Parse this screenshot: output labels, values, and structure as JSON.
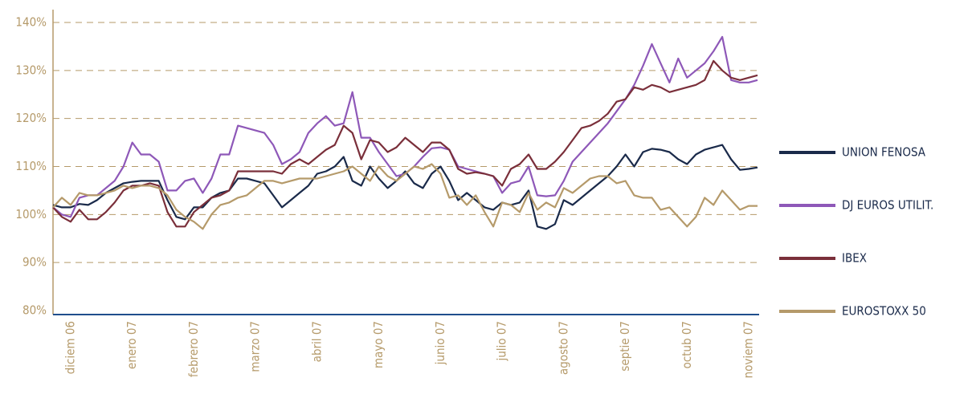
{
  "chart_data": {
    "type": "line",
    "categories": [
      null,
      null,
      "diciem 06",
      null,
      null,
      null,
      null,
      null,
      null,
      "enero 07",
      null,
      null,
      null,
      null,
      null,
      null,
      "febrero 07",
      null,
      null,
      null,
      null,
      null,
      null,
      "marzo 07",
      null,
      null,
      null,
      null,
      null,
      null,
      "abril 07",
      null,
      null,
      null,
      null,
      null,
      null,
      "mayo 07",
      null,
      null,
      null,
      null,
      null,
      null,
      "junio 07",
      null,
      null,
      null,
      null,
      null,
      null,
      "julio 07",
      null,
      null,
      null,
      null,
      null,
      null,
      "agosto 07",
      null,
      null,
      null,
      null,
      null,
      null,
      "septie 07",
      null,
      null,
      null,
      null,
      null,
      null,
      "octub 07",
      null,
      null,
      null,
      null,
      null,
      null,
      "noviem 07",
      null
    ],
    "series": [
      {
        "name": "UNION FENOSA",
        "color": "#1a2a4a",
        "values": [
          102,
          101.5,
          101.5,
          102.2,
          102,
          103,
          104.5,
          105.5,
          106.5,
          106.8,
          107,
          107,
          107,
          103,
          99.5,
          99,
          101.5,
          101.5,
          103.5,
          104.5,
          105,
          107.5,
          107.5,
          107,
          106.5,
          104,
          101.5,
          103,
          104.5,
          106,
          108.5,
          109,
          110,
          112,
          107,
          106,
          110,
          107.5,
          105.5,
          107,
          109,
          106.5,
          105.5,
          108.5,
          110,
          107,
          103,
          104.5,
          103,
          101.5,
          101,
          102.5,
          102,
          102.5,
          105,
          97.5,
          97,
          98,
          103,
          102,
          103.5,
          105,
          106.5,
          108,
          110,
          112.5,
          110,
          113,
          113.7,
          113.5,
          113,
          111.5,
          110.5,
          112.5,
          113.5,
          114,
          114.5,
          111.5,
          109.3,
          109.5,
          109.8
        ]
      },
      {
        "name": "DJ EUROS UTILIT.",
        "color": "#8e58b8",
        "values": [
          101.5,
          100,
          99.5,
          103.5,
          104,
          104,
          105.5,
          107,
          110,
          115,
          112.5,
          112.5,
          111,
          105,
          105,
          107,
          107.5,
          104.5,
          107.5,
          112.5,
          112.5,
          118.5,
          118,
          117.5,
          117,
          114.5,
          110.5,
          111.5,
          113,
          117,
          119,
          120.5,
          118.5,
          119,
          125.5,
          116,
          116,
          113,
          110.5,
          108,
          108.5,
          110,
          112,
          113.8,
          114,
          113.5,
          110,
          109.5,
          109,
          108.5,
          108,
          104.5,
          106.5,
          107,
          110,
          104,
          103.8,
          104,
          107,
          111,
          113,
          115,
          117,
          119,
          121.5,
          124,
          127,
          131,
          135.5,
          131.5,
          127.5,
          132.5,
          128.5,
          130,
          131.5,
          134,
          137,
          128,
          127.5,
          127.5,
          128
        ]
      },
      {
        "name": "IBEX",
        "color": "#7a2f3a",
        "values": [
          101.5,
          99.5,
          98.5,
          101,
          99,
          99,
          100.5,
          102.5,
          105,
          106,
          106,
          106.5,
          106,
          100.5,
          97.5,
          97.5,
          100.5,
          102,
          103.5,
          104,
          105,
          109,
          109,
          109,
          109,
          109,
          108.5,
          110.5,
          111.5,
          110.5,
          112,
          113.5,
          114.5,
          118.5,
          117,
          111.5,
          115.5,
          115,
          113,
          114,
          116,
          114.5,
          113,
          115,
          115,
          113.5,
          109.5,
          108.5,
          108.8,
          108.5,
          108,
          106,
          109.5,
          110.5,
          112.5,
          109.5,
          109.5,
          111,
          113,
          115.5,
          118,
          118.5,
          119.5,
          121,
          123.5,
          124,
          126.5,
          126,
          127,
          126.5,
          125.5,
          126,
          126.5,
          127,
          128,
          132,
          130,
          128.5,
          128,
          128.5,
          129
        ]
      },
      {
        "name": "EUROSTOXX 50",
        "color": "#b59a6a",
        "values": [
          101.5,
          103.5,
          102,
          104.5,
          104,
          104,
          104.5,
          105,
          106,
          105.5,
          106,
          106,
          105.5,
          104,
          101,
          99.5,
          98.5,
          97,
          100,
          102,
          102.5,
          103.5,
          104,
          105.5,
          107,
          107,
          106.5,
          107,
          107.5,
          107.5,
          107.5,
          108,
          108.5,
          109,
          110,
          108.5,
          107,
          110,
          108,
          107,
          108.5,
          110,
          109.5,
          110.5,
          108.5,
          103.5,
          104,
          102,
          104,
          100.5,
          97.5,
          102.5,
          102,
          100.5,
          104.5,
          101,
          102.5,
          101.5,
          105.5,
          104.5,
          106,
          107.5,
          108,
          108,
          106.5,
          107,
          104,
          103.5,
          103.5,
          101,
          101.5,
          99.5,
          97.5,
          99.5,
          103.5,
          102,
          105,
          103,
          101,
          101.8,
          101.8
        ]
      }
    ],
    "ylim": [
      80,
      140
    ],
    "yticks": [
      {
        "value": 80,
        "label": "80%"
      },
      {
        "value": 90,
        "label": "90%"
      },
      {
        "value": 100,
        "label": "100%"
      },
      {
        "value": 110,
        "label": "110%"
      },
      {
        "value": 120,
        "label": "120%"
      },
      {
        "value": 130,
        "label": "130%"
      },
      {
        "value": 140,
        "label": "140%"
      }
    ],
    "grid": true,
    "legend": "right"
  }
}
